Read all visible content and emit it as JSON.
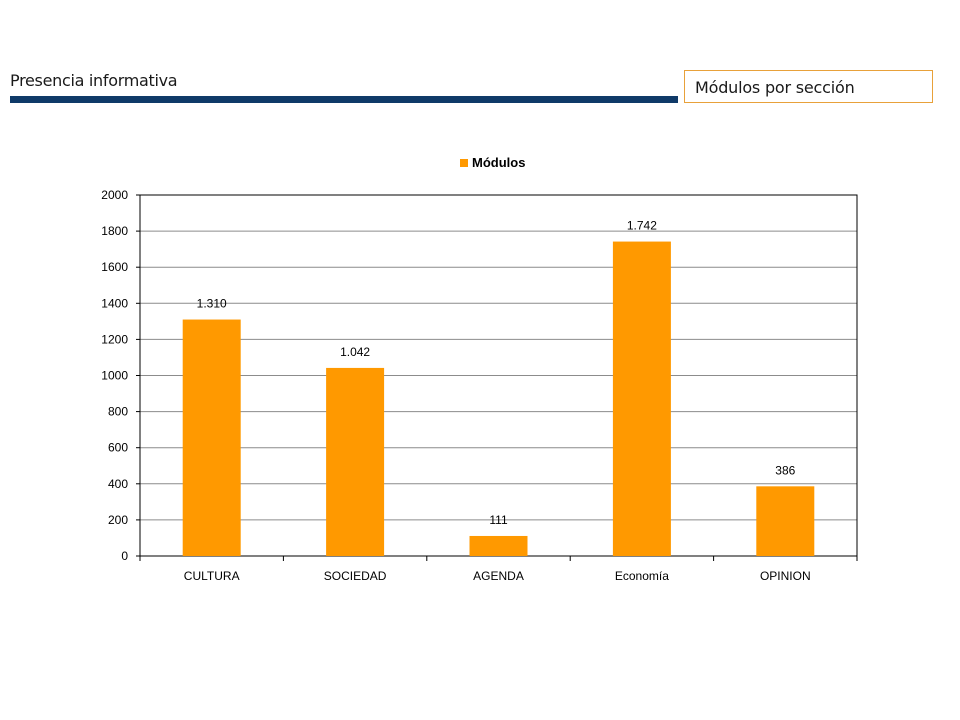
{
  "header": {
    "title": "Presencia informativa",
    "section_label": "Módulos por sección"
  },
  "colors": {
    "bar": "#ff9900",
    "header_bar": "#0f3a68",
    "box_border": "#e8a13a"
  },
  "chart_data": {
    "type": "bar",
    "categories": [
      "CULTURA",
      "SOCIEDAD",
      "AGENDA",
      "Economía",
      "OPINION"
    ],
    "series": [
      {
        "name": "Módulos",
        "values": [
          1310,
          1042,
          111,
          1742,
          386
        ]
      }
    ],
    "data_labels": [
      "1.310",
      "1.042",
      "111",
      "1.742",
      "386"
    ],
    "yticks": [
      "0",
      "200",
      "400",
      "600",
      "800",
      "1000",
      "1200",
      "1400",
      "1600",
      "1800",
      "2000"
    ],
    "ylim": [
      0,
      2000
    ],
    "grid": true,
    "legend": "top-center"
  }
}
